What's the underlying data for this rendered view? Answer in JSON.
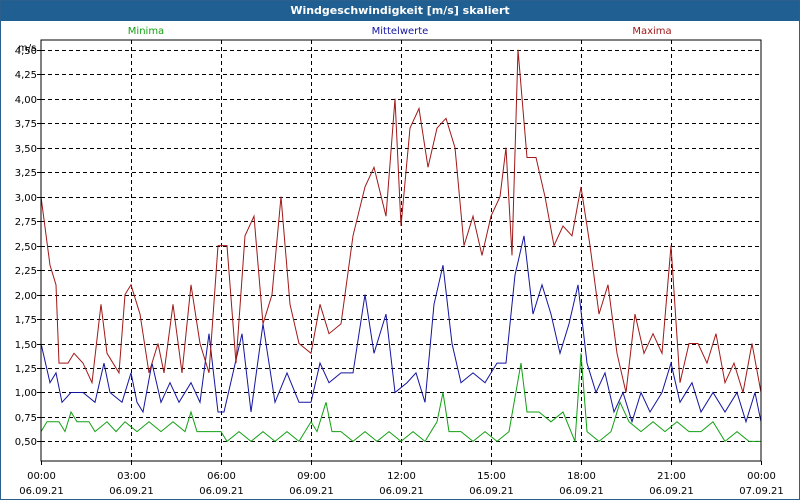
{
  "window": {
    "title": "Windgeschwindigkeit [m/s] skaliert"
  },
  "colors": {
    "minima": "#12a012",
    "mittelwerte": "#1414a0",
    "maxima": "#a01818",
    "title_bar": "#1f5f91",
    "grid": "#000000"
  },
  "chart_data": {
    "type": "line",
    "title": "Windgeschwindigkeit [m/s] skaliert",
    "ylabel": "m/s",
    "ylim": [
      0.3,
      4.6
    ],
    "yticks": [
      "4,50",
      "4,25",
      "4,00",
      "3,75",
      "3,50",
      "3,25",
      "3,00",
      "2,75",
      "2,50",
      "2,25",
      "2,00",
      "1,75",
      "1,50",
      "1,25",
      "1,00",
      "0,75",
      "0,50"
    ],
    "ytick_values": [
      4.5,
      4.25,
      4.0,
      3.75,
      3.5,
      3.25,
      3.0,
      2.75,
      2.5,
      2.25,
      2.0,
      1.75,
      1.5,
      1.25,
      1.0,
      0.75,
      0.5
    ],
    "xlim": [
      0,
      24
    ],
    "xticks": [
      {
        "time": "00:00",
        "date": "06.09.21"
      },
      {
        "time": "03:00",
        "date": "06.09.21"
      },
      {
        "time": "06:00",
        "date": "06.09.21"
      },
      {
        "time": "09:00",
        "date": "06.09.21"
      },
      {
        "time": "12:00",
        "date": "06.09.21"
      },
      {
        "time": "15:00",
        "date": "06.09.21"
      },
      {
        "time": "18:00",
        "date": "06.09.21"
      },
      {
        "time": "21:00",
        "date": "06.09.21"
      },
      {
        "time": "00:00",
        "date": "07.09.21"
      }
    ],
    "grid": true,
    "legend_position": "top",
    "series": [
      {
        "name": "Minima",
        "color": "#12a012",
        "points": [
          [
            0,
            0.6
          ],
          [
            0.2,
            0.7
          ],
          [
            0.6,
            0.7
          ],
          [
            0.8,
            0.6
          ],
          [
            1,
            0.8
          ],
          [
            1.2,
            0.7
          ],
          [
            1.6,
            0.7
          ],
          [
            1.8,
            0.6
          ],
          [
            2.2,
            0.7
          ],
          [
            2.5,
            0.6
          ],
          [
            2.8,
            0.7
          ],
          [
            3.2,
            0.6
          ],
          [
            3.6,
            0.7
          ],
          [
            4,
            0.6
          ],
          [
            4.4,
            0.7
          ],
          [
            4.8,
            0.6
          ],
          [
            5,
            0.8
          ],
          [
            5.2,
            0.6
          ],
          [
            6,
            0.6
          ],
          [
            6.2,
            0.5
          ],
          [
            6.6,
            0.6
          ],
          [
            7,
            0.5
          ],
          [
            7.4,
            0.6
          ],
          [
            7.8,
            0.5
          ],
          [
            8.2,
            0.6
          ],
          [
            8.6,
            0.5
          ],
          [
            9,
            0.7
          ],
          [
            9.2,
            0.6
          ],
          [
            9.5,
            0.9
          ],
          [
            9.7,
            0.6
          ],
          [
            10,
            0.6
          ],
          [
            10.4,
            0.5
          ],
          [
            10.8,
            0.6
          ],
          [
            11.2,
            0.5
          ],
          [
            11.6,
            0.6
          ],
          [
            12,
            0.5
          ],
          [
            12.4,
            0.6
          ],
          [
            12.8,
            0.5
          ],
          [
            13.2,
            0.7
          ],
          [
            13.4,
            1.0
          ],
          [
            13.6,
            0.6
          ],
          [
            14,
            0.6
          ],
          [
            14.4,
            0.5
          ],
          [
            14.8,
            0.6
          ],
          [
            15.2,
            0.5
          ],
          [
            15.6,
            0.6
          ],
          [
            16,
            1.3
          ],
          [
            16.2,
            0.8
          ],
          [
            16.6,
            0.8
          ],
          [
            17,
            0.7
          ],
          [
            17.4,
            0.8
          ],
          [
            17.8,
            0.5
          ],
          [
            18,
            1.4
          ],
          [
            18.2,
            0.6
          ],
          [
            18.6,
            0.5
          ],
          [
            19,
            0.6
          ],
          [
            19.3,
            0.9
          ],
          [
            19.6,
            0.7
          ],
          [
            20,
            0.6
          ],
          [
            20.4,
            0.7
          ],
          [
            20.8,
            0.6
          ],
          [
            21.2,
            0.7
          ],
          [
            21.6,
            0.6
          ],
          [
            22,
            0.6
          ],
          [
            22.4,
            0.7
          ],
          [
            22.8,
            0.5
          ],
          [
            23.2,
            0.6
          ],
          [
            23.6,
            0.5
          ],
          [
            24,
            0.5
          ]
        ]
      },
      {
        "name": "Mittelwerte",
        "color": "#1414a0",
        "points": [
          [
            0,
            1.5
          ],
          [
            0.3,
            1.1
          ],
          [
            0.5,
            1.2
          ],
          [
            0.7,
            0.9
          ],
          [
            1,
            1.0
          ],
          [
            1.4,
            1.0
          ],
          [
            1.8,
            0.9
          ],
          [
            2.1,
            1.3
          ],
          [
            2.3,
            1.0
          ],
          [
            2.7,
            0.9
          ],
          [
            3,
            1.2
          ],
          [
            3.2,
            0.9
          ],
          [
            3.4,
            0.8
          ],
          [
            3.7,
            1.3
          ],
          [
            4,
            0.9
          ],
          [
            4.3,
            1.1
          ],
          [
            4.6,
            0.9
          ],
          [
            5,
            1.1
          ],
          [
            5.3,
            0.9
          ],
          [
            5.6,
            1.6
          ],
          [
            5.9,
            0.8
          ],
          [
            6.1,
            0.8
          ],
          [
            6.4,
            1.2
          ],
          [
            6.7,
            1.6
          ],
          [
            7,
            0.8
          ],
          [
            7.4,
            1.7
          ],
          [
            7.8,
            0.9
          ],
          [
            8.2,
            1.2
          ],
          [
            8.6,
            0.9
          ],
          [
            9,
            0.9
          ],
          [
            9.3,
            1.3
          ],
          [
            9.6,
            1.1
          ],
          [
            10,
            1.2
          ],
          [
            10.4,
            1.2
          ],
          [
            10.8,
            2.0
          ],
          [
            11.1,
            1.4
          ],
          [
            11.5,
            1.8
          ],
          [
            11.8,
            1.0
          ],
          [
            12.2,
            1.1
          ],
          [
            12.5,
            1.2
          ],
          [
            12.8,
            0.9
          ],
          [
            13.1,
            1.9
          ],
          [
            13.4,
            2.3
          ],
          [
            13.7,
            1.5
          ],
          [
            14,
            1.1
          ],
          [
            14.4,
            1.2
          ],
          [
            14.8,
            1.1
          ],
          [
            15.2,
            1.3
          ],
          [
            15.5,
            1.3
          ],
          [
            15.8,
            2.2
          ],
          [
            16.1,
            2.6
          ],
          [
            16.4,
            1.8
          ],
          [
            16.7,
            2.1
          ],
          [
            17,
            1.8
          ],
          [
            17.3,
            1.4
          ],
          [
            17.6,
            1.7
          ],
          [
            17.9,
            2.1
          ],
          [
            18.2,
            1.3
          ],
          [
            18.5,
            1.0
          ],
          [
            18.8,
            1.2
          ],
          [
            19.1,
            0.8
          ],
          [
            19.4,
            1.0
          ],
          [
            19.7,
            0.7
          ],
          [
            20,
            1.0
          ],
          [
            20.3,
            0.8
          ],
          [
            20.7,
            1.0
          ],
          [
            21,
            1.3
          ],
          [
            21.3,
            0.9
          ],
          [
            21.7,
            1.1
          ],
          [
            22,
            0.8
          ],
          [
            22.4,
            1.0
          ],
          [
            22.8,
            0.8
          ],
          [
            23.2,
            1.0
          ],
          [
            23.5,
            0.7
          ],
          [
            23.8,
            1.0
          ],
          [
            24,
            0.7
          ]
        ]
      },
      {
        "name": "Maxima",
        "color": "#a01818",
        "points": [
          [
            0,
            3.0
          ],
          [
            0.3,
            2.3
          ],
          [
            0.5,
            2.1
          ],
          [
            0.6,
            1.3
          ],
          [
            0.9,
            1.3
          ],
          [
            1.1,
            1.4
          ],
          [
            1.4,
            1.3
          ],
          [
            1.7,
            1.1
          ],
          [
            2,
            1.9
          ],
          [
            2.2,
            1.4
          ],
          [
            2.6,
            1.2
          ],
          [
            2.8,
            2.0
          ],
          [
            3,
            2.1
          ],
          [
            3.3,
            1.8
          ],
          [
            3.6,
            1.2
          ],
          [
            3.9,
            1.5
          ],
          [
            4.1,
            1.2
          ],
          [
            4.4,
            1.9
          ],
          [
            4.7,
            1.2
          ],
          [
            5,
            2.1
          ],
          [
            5.3,
            1.5
          ],
          [
            5.6,
            1.2
          ],
          [
            5.9,
            2.5
          ],
          [
            6.2,
            2.5
          ],
          [
            6.5,
            1.3
          ],
          [
            6.8,
            2.6
          ],
          [
            7.1,
            2.8
          ],
          [
            7.4,
            1.7
          ],
          [
            7.7,
            2.0
          ],
          [
            8,
            3.0
          ],
          [
            8.3,
            1.9
          ],
          [
            8.6,
            1.5
          ],
          [
            9,
            1.4
          ],
          [
            9.3,
            1.9
          ],
          [
            9.6,
            1.6
          ],
          [
            10,
            1.7
          ],
          [
            10.4,
            2.6
          ],
          [
            10.8,
            3.1
          ],
          [
            11.1,
            3.3
          ],
          [
            11.5,
            2.8
          ],
          [
            11.8,
            4.0
          ],
          [
            12,
            2.7
          ],
          [
            12.3,
            3.7
          ],
          [
            12.6,
            3.9
          ],
          [
            12.9,
            3.3
          ],
          [
            13.2,
            3.7
          ],
          [
            13.5,
            3.8
          ],
          [
            13.8,
            3.5
          ],
          [
            14.1,
            2.5
          ],
          [
            14.4,
            2.8
          ],
          [
            14.7,
            2.4
          ],
          [
            15,
            2.8
          ],
          [
            15.3,
            3.0
          ],
          [
            15.5,
            3.5
          ],
          [
            15.7,
            2.4
          ],
          [
            15.9,
            4.5
          ],
          [
            16.2,
            3.4
          ],
          [
            16.5,
            3.4
          ],
          [
            16.8,
            3.0
          ],
          [
            17.1,
            2.5
          ],
          [
            17.4,
            2.7
          ],
          [
            17.7,
            2.6
          ],
          [
            18,
            3.1
          ],
          [
            18.3,
            2.5
          ],
          [
            18.6,
            1.8
          ],
          [
            18.9,
            2.1
          ],
          [
            19.2,
            1.4
          ],
          [
            19.5,
            1.0
          ],
          [
            19.8,
            1.8
          ],
          [
            20.1,
            1.4
          ],
          [
            20.4,
            1.6
          ],
          [
            20.7,
            1.4
          ],
          [
            21,
            2.5
          ],
          [
            21.3,
            1.1
          ],
          [
            21.6,
            1.5
          ],
          [
            21.9,
            1.5
          ],
          [
            22.2,
            1.3
          ],
          [
            22.5,
            1.6
          ],
          [
            22.8,
            1.1
          ],
          [
            23.1,
            1.3
          ],
          [
            23.4,
            1.0
          ],
          [
            23.7,
            1.5
          ],
          [
            24,
            1.0
          ]
        ]
      }
    ]
  }
}
